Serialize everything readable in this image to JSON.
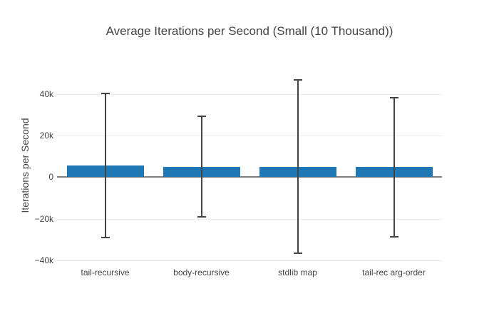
{
  "chart_data": {
    "type": "bar",
    "title": "Average Iterations per Second (Small (10 Thousand))",
    "xlabel": "",
    "ylabel": "Iterations per Second",
    "categories": [
      "tail-recursive",
      "body-recursive",
      "stdlib map",
      "tail-rec arg-order"
    ],
    "values": [
      5650,
      5100,
      5100,
      4800
    ],
    "error_y": [
      34800,
      24200,
      41800,
      33600
    ],
    "ylim": [
      -41800,
      51700
    ],
    "yticks": [
      {
        "value": -40000,
        "label": "−40k"
      },
      {
        "value": -20000,
        "label": "−20k"
      },
      {
        "value": 0,
        "label": "0"
      },
      {
        "value": 20000,
        "label": "20k"
      },
      {
        "value": 40000,
        "label": "40k"
      }
    ],
    "grid": true,
    "legend": false,
    "colors": {
      "bar": "#1f77b4",
      "error_bar": "#444444",
      "zero_line": "#808080",
      "grid_line": "#ebebeb",
      "text": "#444444",
      "background": "#ffffff"
    }
  }
}
